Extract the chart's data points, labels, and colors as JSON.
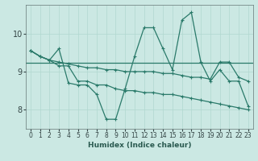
{
  "xlabel": "Humidex (Indice chaleur)",
  "background_color": "#cbe8e3",
  "grid_color": "#b0d8d0",
  "line_color": "#2a7a6a",
  "xlim": [
    -0.5,
    23.5
  ],
  "ylim": [
    7.5,
    10.75
  ],
  "yticks": [
    8,
    9,
    10
  ],
  "xticks": [
    0,
    1,
    2,
    3,
    4,
    5,
    6,
    7,
    8,
    9,
    10,
    11,
    12,
    13,
    14,
    15,
    16,
    17,
    18,
    19,
    20,
    21,
    22,
    23
  ],
  "line1_x": [
    0,
    1,
    2,
    3,
    4,
    5,
    6,
    7,
    8,
    9,
    10,
    11,
    12,
    13,
    14,
    15,
    16,
    17,
    18,
    19,
    20,
    21,
    22,
    23
  ],
  "line1_y": [
    9.55,
    9.4,
    9.3,
    9.6,
    8.7,
    8.65,
    8.65,
    8.4,
    7.75,
    7.75,
    8.55,
    9.4,
    10.15,
    10.15,
    9.6,
    9.05,
    10.35,
    10.55,
    9.25,
    8.75,
    9.05,
    8.75,
    8.75,
    8.1
  ],
  "line2_x": [
    0,
    1,
    2,
    3,
    4,
    5,
    6,
    7,
    8,
    9,
    10,
    11,
    12,
    13,
    14,
    15,
    16,
    17,
    18,
    19,
    20,
    21,
    22,
    23
  ],
  "line2_y": [
    9.55,
    9.4,
    9.3,
    9.15,
    9.15,
    8.75,
    8.75,
    8.65,
    8.65,
    8.55,
    8.5,
    8.5,
    8.45,
    8.45,
    8.4,
    8.4,
    8.35,
    8.3,
    8.25,
    8.2,
    8.15,
    8.1,
    8.05,
    8.0
  ],
  "line3_x": [
    0,
    1,
    2,
    3,
    4,
    5,
    6,
    7,
    8,
    9,
    10,
    11,
    12,
    13,
    14,
    15,
    16,
    17,
    18,
    19,
    20,
    21,
    22,
    23
  ],
  "line3_y": [
    9.55,
    9.4,
    9.3,
    9.25,
    9.2,
    9.15,
    9.1,
    9.1,
    9.05,
    9.05,
    9.0,
    9.0,
    9.0,
    9.0,
    8.95,
    8.95,
    8.9,
    8.85,
    8.85,
    8.8,
    9.25,
    9.25,
    8.85,
    8.75
  ],
  "line4_x": [
    0,
    19
  ],
  "line4_y": [
    9.25,
    9.25
  ],
  "markersize": 3,
  "linewidth": 0.9
}
